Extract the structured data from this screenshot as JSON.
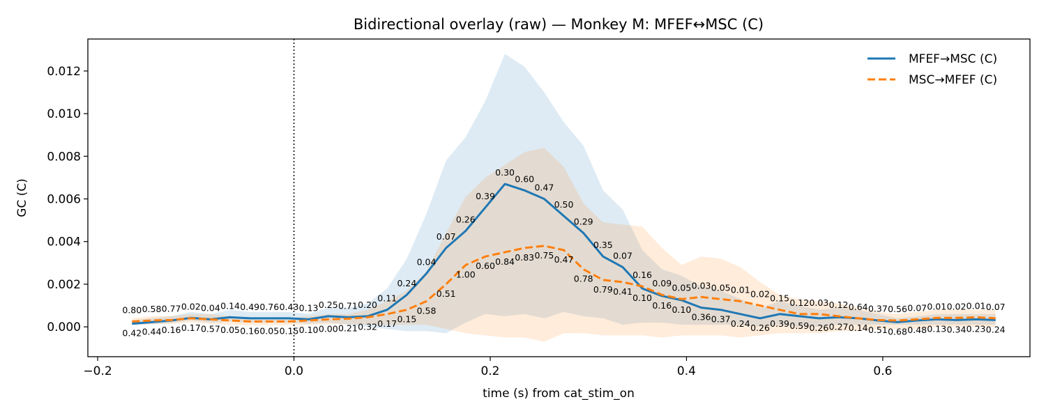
{
  "chart_data": {
    "type": "line",
    "title": "Bidirectional overlay (raw) — Monkey M: MFEF↔MSC (C)",
    "xlabel": "time (s) from cat_stim_on",
    "ylabel": "GC (C)",
    "xlim": [
      -0.21,
      0.75
    ],
    "ylim": [
      -0.0014,
      0.0135
    ],
    "xticks": [
      -0.2,
      0.0,
      0.2,
      0.4,
      0.6
    ],
    "xtick_labels": [
      "−0.2",
      "0.0",
      "0.2",
      "0.4",
      "0.6"
    ],
    "yticks": [
      0.0,
      0.002,
      0.004,
      0.006,
      0.008,
      0.01,
      0.012
    ],
    "ytick_labels": [
      "0.000",
      "0.002",
      "0.004",
      "0.006",
      "0.008",
      "0.010",
      "0.012"
    ],
    "vline_x": 0.0,
    "legend_position": "top-right",
    "grid": false,
    "x": [
      -0.165,
      -0.145,
      -0.125,
      -0.105,
      -0.085,
      -0.065,
      -0.045,
      -0.025,
      -0.005,
      0.015,
      0.035,
      0.055,
      0.075,
      0.095,
      0.115,
      0.135,
      0.155,
      0.175,
      0.195,
      0.215,
      0.235,
      0.255,
      0.275,
      0.295,
      0.315,
      0.335,
      0.355,
      0.375,
      0.395,
      0.415,
      0.435,
      0.455,
      0.475,
      0.495,
      0.515,
      0.535,
      0.555,
      0.575,
      0.595,
      0.615,
      0.635,
      0.655,
      0.675,
      0.695,
      0.715
    ],
    "series": [
      {
        "name": "MFEF→MSC (C)",
        "color": "#1f77b4",
        "dash": "solid",
        "values": [
          0.00015,
          0.00022,
          0.0003,
          0.00042,
          0.00035,
          0.00045,
          0.0004,
          0.0004,
          0.0004,
          0.00035,
          0.0005,
          0.00045,
          0.0005,
          0.0008,
          0.0015,
          0.0025,
          0.0037,
          0.0045,
          0.0056,
          0.0067,
          0.0064,
          0.006,
          0.0052,
          0.0044,
          0.0033,
          0.0028,
          0.0018,
          0.00145,
          0.00125,
          0.0009,
          0.0008,
          0.0006,
          0.0004,
          0.0006,
          0.0005,
          0.0004,
          0.00045,
          0.0004,
          0.0003,
          0.00022,
          0.0003,
          0.00035,
          0.00032,
          0.00035,
          0.00032
        ],
        "band_lower": [
          8e-05,
          0.00012,
          0.00018,
          0.0003,
          0.0002,
          0.00025,
          0.0002,
          0.0002,
          0.0002,
          0.00015,
          0.0002,
          0.0001,
          0.0,
          -0.0001,
          -0.0002,
          -0.0002,
          -0.0003,
          0.0002,
          0.0006,
          0.0005,
          0.0006,
          0.0004,
          0.0007,
          0.0005,
          0.0004,
          0.0001,
          0.0002,
          0.0002,
          0.0001,
          0.0001,
          0.0001,
          0.0001,
          0.0,
          0.0001,
          0.0,
          0.0,
          0.0001,
          0.0001,
          0.0001,
          0.0001,
          0.0001,
          0.0001,
          0.0001,
          0.0001,
          0.0001
        ],
        "band_upper": [
          0.0003,
          0.0004,
          0.0005,
          0.0007,
          0.0006,
          0.0008,
          0.0007,
          0.0007,
          0.0007,
          0.0006,
          0.0009,
          0.0009,
          0.0011,
          0.0018,
          0.0032,
          0.0053,
          0.0078,
          0.0089,
          0.0106,
          0.0128,
          0.0122,
          0.011,
          0.0096,
          0.0085,
          0.0064,
          0.0055,
          0.0036,
          0.0027,
          0.0024,
          0.0019,
          0.0017,
          0.0013,
          0.0009,
          0.0012,
          0.001,
          0.0008,
          0.0009,
          0.0008,
          0.0006,
          0.0004,
          0.0005,
          0.0006,
          0.0006,
          0.0006,
          0.0006
        ],
        "point_labels": [
          "0.42",
          "0.44",
          "0.16",
          "0.02",
          "0.04",
          "0.14",
          "0.49",
          "0.76",
          "0.43",
          "0.13",
          "0.25",
          "0.71",
          "0.20",
          "0.11",
          "0.24",
          "0.04",
          "0.07",
          "0.26",
          "0.39",
          "0.30",
          "0.60",
          "0.47",
          "0.50",
          "0.29",
          "0.35",
          "0.07",
          "0.10",
          "0.16",
          "0.10",
          "0.36",
          "0.37",
          "0.24",
          "0.26",
          "0.39",
          "0.59",
          "0.26",
          "0.27",
          "0.64",
          "0.51",
          "0.68",
          "0.48",
          "0.13",
          "0.34",
          "0.23",
          "0.24"
        ]
      },
      {
        "name": "MSC→MFEF (C)",
        "color": "#ff7f0e",
        "dash": "dashed",
        "values": [
          0.00025,
          0.0003,
          0.00032,
          0.0004,
          0.00035,
          0.0003,
          0.00025,
          0.00025,
          0.00025,
          0.0003,
          0.00035,
          0.00038,
          0.00045,
          0.0006,
          0.0008,
          0.0012,
          0.002,
          0.0029,
          0.0033,
          0.0035,
          0.0037,
          0.0038,
          0.0036,
          0.0027,
          0.0022,
          0.0021,
          0.0019,
          0.0015,
          0.0013,
          0.0014,
          0.0013,
          0.0012,
          0.001,
          0.0008,
          0.0006,
          0.0006,
          0.0005,
          0.0004,
          0.00032,
          0.0003,
          0.00035,
          0.00042,
          0.00042,
          0.00045,
          0.0004
        ],
        "band_lower": [
          0.0001,
          0.00012,
          0.00014,
          0.0002,
          0.00015,
          0.0001,
          8e-05,
          8e-05,
          8e-05,
          0.0001,
          0.00012,
          0.00012,
          0.0001,
          0.0001,
          0.0001,
          0.0001,
          -0.0001,
          -0.0003,
          -0.0004,
          -0.0005,
          -0.0005,
          -0.0007,
          -0.0003,
          -0.0003,
          -0.0004,
          -0.0004,
          -0.0004,
          -0.0005,
          -0.0004,
          -0.0004,
          -0.0004,
          -0.0005,
          -0.0004,
          -0.0003,
          -0.0003,
          -0.0003,
          -0.0002,
          -0.0002,
          -0.0001,
          -0.0001,
          -0.0001,
          0.0,
          0.0,
          0.0,
          0.0
        ],
        "band_upper": [
          0.0004,
          0.0005,
          0.0005,
          0.0006,
          0.0006,
          0.0005,
          0.0004,
          0.0004,
          0.0004,
          0.0005,
          0.0006,
          0.0006,
          0.0008,
          0.0012,
          0.0017,
          0.0026,
          0.0044,
          0.0061,
          0.007,
          0.0076,
          0.0082,
          0.0084,
          0.0075,
          0.0058,
          0.0049,
          0.0048,
          0.0047,
          0.0037,
          0.0029,
          0.0033,
          0.0032,
          0.0028,
          0.0021,
          0.0015,
          0.0013,
          0.0012,
          0.0011,
          0.0009,
          0.0007,
          0.0006,
          0.0007,
          0.0008,
          0.0008,
          0.0008,
          0.0008
        ],
        "point_labels": [
          "0.80",
          "0.58",
          "0.77",
          "0.17",
          "0.57",
          "0.05",
          "0.16",
          "0.05",
          "0.15",
          "0.10",
          "0.00",
          "0.21",
          "0.32",
          "0.17",
          "0.15",
          "0.58",
          "0.51",
          "1.00",
          "0.60",
          "0.84",
          "0.83",
          "0.75",
          "0.47",
          "0.78",
          "0.79",
          "0.41",
          "0.16",
          "0.09",
          "0.05",
          "0.03",
          "0.05",
          "0.01",
          "0.02",
          "0.15",
          "0.12",
          "0.03",
          "0.12",
          "0.14",
          "0.37",
          "0.56",
          "0.07",
          "0.01",
          "0.02",
          "0.01",
          "0.07"
        ]
      }
    ]
  }
}
